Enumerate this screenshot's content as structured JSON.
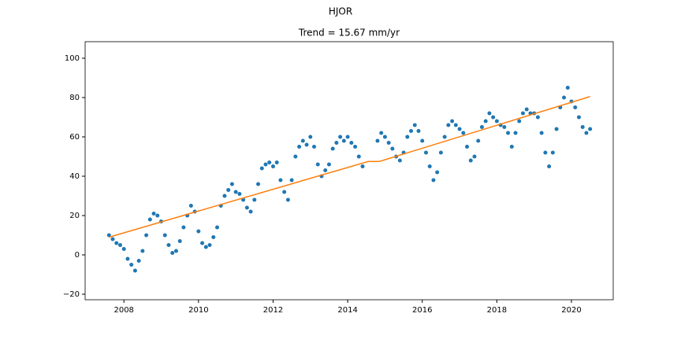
{
  "chart_data": {
    "type": "scatter",
    "suptitle": "HJOR",
    "title": "Trend = 15.67 mm/yr",
    "xlim": [
      2006.96,
      2021.12
    ],
    "ylim": [
      -22.8,
      108.4
    ],
    "xticks": [
      2008,
      2010,
      2012,
      2014,
      2016,
      2018,
      2020
    ],
    "yticks": [
      {
        "value": -20,
        "label": "−20"
      },
      0,
      20,
      40,
      60,
      80,
      100
    ],
    "series": [
      {
        "type": "scatter",
        "color": "#1f77b4",
        "x": [
          2007.6,
          2007.7,
          2007.8,
          2007.9,
          2008.0,
          2008.1,
          2008.2,
          2008.3,
          2008.4,
          2008.5,
          2008.6,
          2008.7,
          2008.8,
          2008.9,
          2009.0,
          2009.1,
          2009.2,
          2009.3,
          2009.4,
          2009.5,
          2009.6,
          2009.7,
          2009.8,
          2009.9,
          2010.0,
          2010.1,
          2010.2,
          2010.3,
          2010.4,
          2010.5,
          2010.6,
          2010.7,
          2010.8,
          2010.9,
          2011.0,
          2011.1,
          2011.2,
          2011.3,
          2011.4,
          2011.5,
          2011.6,
          2011.7,
          2011.8,
          2011.9,
          2012.0,
          2012.1,
          2012.2,
          2012.3,
          2012.4,
          2012.5,
          2012.6,
          2012.7,
          2012.8,
          2012.9,
          2013.0,
          2013.1,
          2013.2,
          2013.3,
          2013.4,
          2013.5,
          2013.6,
          2013.7,
          2013.8,
          2013.9,
          2014.0,
          2014.1,
          2014.2,
          2014.3,
          2014.4,
          2014.8,
          2014.9,
          2015.0,
          2015.1,
          2015.2,
          2015.3,
          2015.4,
          2015.5,
          2015.6,
          2015.7,
          2015.8,
          2015.9,
          2016.0,
          2016.1,
          2016.2,
          2016.3,
          2016.4,
          2016.5,
          2016.6,
          2016.7,
          2016.8,
          2016.9,
          2017.0,
          2017.1,
          2017.2,
          2017.3,
          2017.4,
          2017.5,
          2017.6,
          2017.7,
          2017.8,
          2017.9,
          2018.0,
          2018.1,
          2018.2,
          2018.3,
          2018.4,
          2018.5,
          2018.6,
          2018.7,
          2018.8,
          2018.9,
          2019.0,
          2019.1,
          2019.2,
          2019.3,
          2019.4,
          2019.5,
          2019.6,
          2019.7,
          2019.8,
          2019.9,
          2020.0,
          2020.1,
          2020.2,
          2020.3,
          2020.4,
          2020.5
        ],
        "values": [
          10,
          8,
          6,
          5,
          3,
          -2,
          -5,
          -8,
          -3,
          2,
          10,
          18,
          21,
          20,
          17,
          10,
          5,
          1,
          2,
          7,
          14,
          20,
          25,
          22,
          12,
          6,
          4,
          5,
          9,
          14,
          25,
          30,
          33,
          36,
          32,
          31,
          28,
          24,
          22,
          28,
          36,
          44,
          46,
          47,
          45,
          47,
          38,
          32,
          28,
          38,
          50,
          55,
          58,
          56,
          60,
          55,
          46,
          40,
          43,
          46,
          54,
          57,
          60,
          58,
          60,
          57,
          55,
          50,
          45,
          58,
          62,
          60,
          57,
          54,
          50,
          48,
          52,
          60,
          63,
          66,
          63,
          58,
          52,
          45,
          38,
          42,
          52,
          60,
          66,
          68,
          66,
          64,
          62,
          55,
          48,
          50,
          58,
          65,
          68,
          72,
          70,
          68,
          66,
          65,
          62,
          55,
          62,
          68,
          72,
          74,
          72,
          72,
          70,
          62,
          52,
          45,
          52,
          64,
          75,
          80,
          85,
          78,
          75,
          70,
          65,
          62,
          64
        ]
      },
      {
        "type": "line",
        "color": "#ff7f0e",
        "x": [
          2007.6,
          2014.55,
          2014.85,
          2020.5
        ],
        "values": [
          9,
          47.5,
          47.5,
          80.5
        ]
      }
    ]
  }
}
